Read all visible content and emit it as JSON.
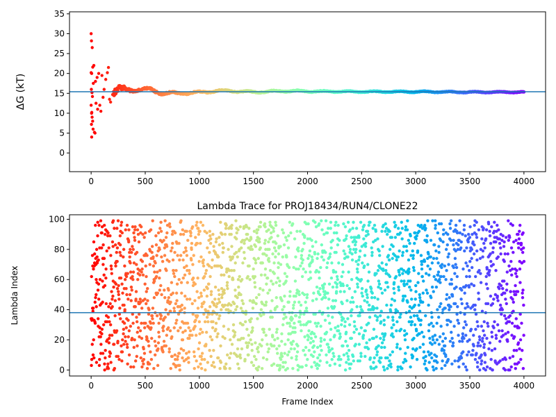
{
  "chart_data": [
    {
      "type": "scatter",
      "title": "",
      "xlabel": "",
      "ylabel": "ΔG (kT)",
      "xlim": [
        -200,
        4200
      ],
      "ylim": [
        -4.7,
        35.5
      ],
      "xticks": [
        0,
        500,
        1000,
        1500,
        2000,
        2500,
        3000,
        3500,
        4000
      ],
      "yticks": [
        0,
        5,
        10,
        15,
        20,
        25,
        30,
        35
      ],
      "hline": 15.4,
      "hline_color": "#1f77b4",
      "colormap": "rainbow (red at frame 0 → violet at frame 4000)",
      "grid": false,
      "early_points": [
        {
          "x": 0,
          "y": 30.0
        },
        {
          "x": 3,
          "y": 28.2
        },
        {
          "x": 10,
          "y": 26.5
        },
        {
          "x": 0,
          "y": 20.2
        },
        {
          "x": 5,
          "y": 20.0
        },
        {
          "x": 15,
          "y": 21.6
        },
        {
          "x": 25,
          "y": 22.0
        },
        {
          "x": 2,
          "y": 16.0
        },
        {
          "x": 8,
          "y": 15.2
        },
        {
          "x": 12,
          "y": 14.2
        },
        {
          "x": 0,
          "y": 12.0
        },
        {
          "x": 6,
          "y": 10.2
        },
        {
          "x": 4,
          "y": 10.0
        },
        {
          "x": 9,
          "y": 9.0
        },
        {
          "x": 14,
          "y": 8.0
        },
        {
          "x": 3,
          "y": 7.2
        },
        {
          "x": 18,
          "y": 6.0
        },
        {
          "x": 30,
          "y": 5.2
        },
        {
          "x": 36,
          "y": 5.0
        },
        {
          "x": 5,
          "y": 4.0
        },
        {
          "x": 20,
          "y": 17.5
        },
        {
          "x": 40,
          "y": 18.0
        },
        {
          "x": 45,
          "y": 12.5
        },
        {
          "x": 55,
          "y": 19.0
        },
        {
          "x": 60,
          "y": 11.0
        },
        {
          "x": 70,
          "y": 20.0
        },
        {
          "x": 80,
          "y": 12.0
        },
        {
          "x": 90,
          "y": 10.5
        },
        {
          "x": 100,
          "y": 19.5
        },
        {
          "x": 110,
          "y": 14.0
        },
        {
          "x": 120,
          "y": 16.0
        },
        {
          "x": 135,
          "y": 18.5
        },
        {
          "x": 150,
          "y": 20.2
        },
        {
          "x": 160,
          "y": 21.5
        },
        {
          "x": 170,
          "y": 13.5
        },
        {
          "x": 180,
          "y": 12.8
        }
      ],
      "trace_envelope": [
        {
          "x": 200,
          "center": 15.8,
          "spread": 2.0
        },
        {
          "x": 300,
          "center": 15.6,
          "spread": 1.3
        },
        {
          "x": 400,
          "center": 16.0,
          "spread": 0.7
        },
        {
          "x": 500,
          "center": 16.0,
          "spread": 0.5
        },
        {
          "x": 600,
          "center": 15.6,
          "spread": 0.8
        },
        {
          "x": 700,
          "center": 15.0,
          "spread": 0.6
        },
        {
          "x": 800,
          "center": 15.0,
          "spread": 0.4
        },
        {
          "x": 1000,
          "center": 15.2,
          "spread": 0.4
        },
        {
          "x": 1200,
          "center": 15.7,
          "spread": 0.3
        },
        {
          "x": 1500,
          "center": 15.3,
          "spread": 0.3
        },
        {
          "x": 1800,
          "center": 15.6,
          "spread": 0.3
        },
        {
          "x": 2000,
          "center": 15.5,
          "spread": 0.25
        },
        {
          "x": 2500,
          "center": 15.4,
          "spread": 0.2
        },
        {
          "x": 3000,
          "center": 15.4,
          "spread": 0.2
        },
        {
          "x": 3500,
          "center": 15.3,
          "spread": 0.2
        },
        {
          "x": 4000,
          "center": 15.3,
          "spread": 0.15
        }
      ]
    },
    {
      "type": "scatter",
      "title": "Lambda Trace for PROJ18434/RUN4/CLONE22",
      "xlabel": "Frame Index",
      "ylabel": "Lambda Index",
      "xlim": [
        -200,
        4200
      ],
      "ylim": [
        -4,
        103
      ],
      "xticks": [
        0,
        500,
        1000,
        1500,
        2000,
        2500,
        3000,
        3500,
        4000
      ],
      "yticks": [
        0,
        20,
        40,
        60,
        80,
        100
      ],
      "hline": 38,
      "hline_color": "#1f77b4",
      "colormap": "rainbow (red at frame 0 → violet at frame 4000)",
      "grid": false,
      "n_frames": 4000,
      "lambda_range": [
        0,
        99
      ]
    }
  ]
}
